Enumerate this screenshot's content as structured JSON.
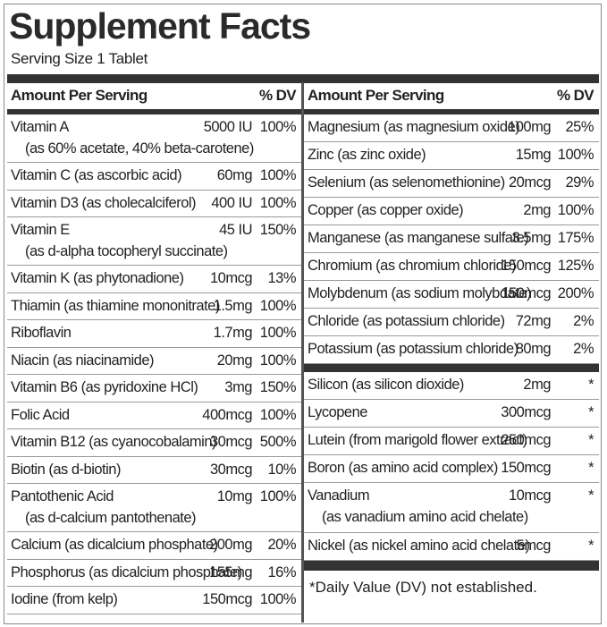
{
  "header": {
    "title": "Supplement Facts",
    "serving_size": "Serving Size 1 Tablet"
  },
  "left": {
    "column_headers": [
      "Amount Per Serving",
      "% DV"
    ],
    "rows": [
      {
        "name": "Vitamin A",
        "detail": "(as 60% acetate, 40% beta-carotene)",
        "amount": "5000 IU",
        "dv": "100%"
      },
      {
        "name": "Vitamin C (as ascorbic acid)",
        "amount": "60mg",
        "dv": "100%"
      },
      {
        "name": "Vitamin D3 (as cholecalciferol)",
        "amount": "400 IU",
        "dv": "100%"
      },
      {
        "name": "Vitamin E",
        "detail": "(as d-alpha tocopheryl succinate)",
        "amount": "45 IU",
        "dv": "150%"
      },
      {
        "name": "Vitamin K (as phytonadione)",
        "amount": "10mcg",
        "dv": "13%"
      },
      {
        "name": "Thiamin (as thiamine mononitrate)",
        "amount": "1.5mg",
        "dv": "100%"
      },
      {
        "name": "Riboflavin",
        "amount": "1.7mg",
        "dv": "100%"
      },
      {
        "name": "Niacin (as niacinamide)",
        "amount": "20mg",
        "dv": "100%"
      },
      {
        "name": "Vitamin B6 (as pyridoxine HCl)",
        "amount": "3mg",
        "dv": "150%"
      },
      {
        "name": "Folic Acid",
        "amount": "400mcg",
        "dv": "100%"
      },
      {
        "name": "Vitamin B12 (as cyanocobalamin)",
        "amount": "30mcg",
        "dv": "500%"
      },
      {
        "name": "Biotin (as d-biotin)",
        "amount": "30mcg",
        "dv": "10%"
      },
      {
        "name": "Pantothenic Acid",
        "detail": "(as d-calcium pantothenate)",
        "amount": "10mg",
        "dv": "100%"
      },
      {
        "name": "Calcium (as dicalcium phosphate)",
        "amount": "200mg",
        "dv": "20%"
      },
      {
        "name": "Phosphorus (as dicalcium phosphate)",
        "amount": "155mg",
        "dv": "16%"
      },
      {
        "name": "Iodine (from kelp)",
        "amount": "150mcg",
        "dv": "100%"
      }
    ]
  },
  "right": {
    "column_headers": [
      "Amount Per Serving",
      "% DV"
    ],
    "rows": [
      {
        "name": "Magnesium (as magnesium oxide)",
        "amount": "100mg",
        "dv": "25%"
      },
      {
        "name": "Zinc (as zinc oxide)",
        "amount": "15mg",
        "dv": "100%"
      },
      {
        "name": "Selenium (as selenomethionine)",
        "amount": "20mcg",
        "dv": "29%"
      },
      {
        "name": "Copper (as copper oxide)",
        "amount": "2mg",
        "dv": "100%"
      },
      {
        "name": "Manganese (as manganese sulfate)",
        "amount": "3.5mg",
        "dv": "175%"
      },
      {
        "name": "Chromium (as chromium chloride)",
        "amount": "150mcg",
        "dv": "125%"
      },
      {
        "name": "Molybdenum (as sodium molybdate)",
        "amount": "150mcg",
        "dv": "200%"
      },
      {
        "name": "Chloride (as potassium chloride)",
        "amount": "72mg",
        "dv": "2%"
      },
      {
        "name": "Potassium (as potassium chloride)",
        "amount": "80mg",
        "dv": "2%"
      }
    ],
    "other_rows": [
      {
        "name": "Silicon (as silicon dioxide)",
        "amount": "2mg",
        "dv": "*"
      },
      {
        "name": "Lycopene",
        "amount": "300mcg",
        "dv": "*"
      },
      {
        "name": "Lutein (from marigold flower extract)",
        "amount": "250mcg",
        "dv": "*"
      },
      {
        "name": "Boron (as amino acid complex)",
        "amount": "150mcg",
        "dv": "*"
      },
      {
        "name": "Vanadium",
        "detail": "(as vanadium amino acid chelate)",
        "amount": "10mcg",
        "dv": "*"
      },
      {
        "name": "Nickel (as nickel amino acid chelate)",
        "amount": "5mcg",
        "dv": "*"
      }
    ],
    "footnote": "*Daily Value (DV) not established."
  }
}
